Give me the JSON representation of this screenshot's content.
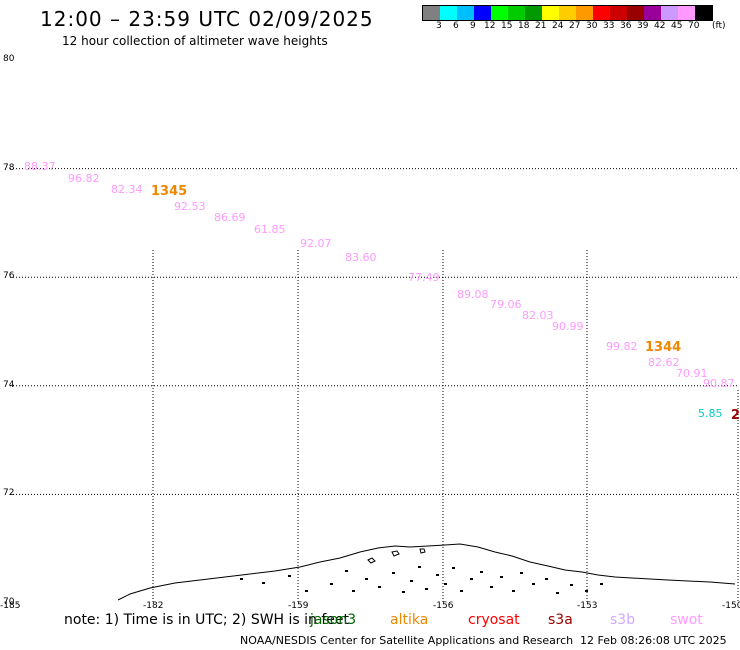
{
  "header": {
    "title": "12:00 – 23:59 UTC 02/09/2025",
    "subtitle": "12 hour collection of altimeter wave heights"
  },
  "colorbar": {
    "colors": [
      "#808080",
      "#00ffff",
      "#00bfff",
      "#0000ff",
      "#00ff00",
      "#00cc00",
      "#009900",
      "#ffff00",
      "#ffcc00",
      "#ff9900",
      "#ff0000",
      "#cc0000",
      "#990000",
      "#990099",
      "#cc99ff",
      "#ff99ff",
      "#000000"
    ],
    "labels": [
      "3",
      "6",
      "9",
      "12",
      "15",
      "18",
      "21",
      "24",
      "27",
      "30",
      "33",
      "36",
      "39",
      "42",
      "45",
      "70"
    ],
    "unit": "(ft)"
  },
  "axes": {
    "y_ticks": [
      {
        "label": "80",
        "value": 80
      },
      {
        "label": "78",
        "value": 78
      },
      {
        "label": "76",
        "value": 76
      },
      {
        "label": "74",
        "value": 74
      },
      {
        "label": "72",
        "value": 72
      },
      {
        "label": "70",
        "value": 70
      }
    ],
    "x_ticks": [
      {
        "label": "-185",
        "value": -185
      },
      {
        "label": "-182",
        "value": -182
      },
      {
        "label": "-159",
        "value": -159
      },
      {
        "label": "-156",
        "value": -156
      },
      {
        "label": "-153",
        "value": -153
      },
      {
        "label": "-150",
        "value": -150
      }
    ]
  },
  "observations": [
    {
      "text": "88.37",
      "color": "#ff99ff",
      "lon": -184.5,
      "lat": 78.7
    },
    {
      "text": "96.82",
      "color": "#ff99ff",
      "lon": -183.5,
      "lat": 78.45
    },
    {
      "text": "82.34",
      "color": "#ff99ff",
      "lon": -182.8,
      "lat": 78.2
    },
    {
      "text": "92.53",
      "color": "#ff99ff",
      "lon": -181.8,
      "lat": 77.85
    },
    {
      "text": "86.69",
      "color": "#ff99ff",
      "lon": -181.0,
      "lat": 77.6
    },
    {
      "text": "61.85",
      "color": "#ff99ff",
      "lon": -180.2,
      "lat": 77.35
    },
    {
      "text": "92.07",
      "color": "#ff99ff",
      "lon": -179.2,
      "lat": 77.1
    },
    {
      "text": "83.60",
      "color": "#ff99ff",
      "lon": -157.7,
      "lat": 76.95
    },
    {
      "text": "77.49",
      "color": "#ff99ff",
      "lon": -156.4,
      "lat": 76.5
    },
    {
      "text": "89.08",
      "color": "#ff99ff",
      "lon": -155.5,
      "lat": 76.2
    },
    {
      "text": "79.06",
      "color": "#ff99ff",
      "lon": -154.8,
      "lat": 75.95
    },
    {
      "text": "82.03",
      "color": "#ff99ff",
      "lon": -154.1,
      "lat": 75.7
    },
    {
      "text": "90.99",
      "color": "#ff99ff",
      "lon": -153.4,
      "lat": 75.45
    },
    {
      "text": "99.82",
      "color": "#ff99ff",
      "lon": -152.6,
      "lat": 75.2
    },
    {
      "text": "82.62",
      "color": "#ff99ff",
      "lon": -151.8,
      "lat": 74.95
    },
    {
      "text": "70.91",
      "color": "#ff99ff",
      "lon": -151.2,
      "lat": 74.75
    },
    {
      "text": "90.87",
      "color": "#ff99ff",
      "lon": -150.7,
      "lat": 74.5
    },
    {
      "text": "5.85",
      "color": "#00cccc",
      "lon": -151.3,
      "lat": 74.05
    }
  ],
  "pass_labels": [
    {
      "text": "1345",
      "color": "#ee8800",
      "lon": -182.0,
      "lat": 78.0
    },
    {
      "text": "1344",
      "color": "#ee8800",
      "lon": -152.0,
      "lat": 75.3
    },
    {
      "text": "2",
      "color": "#990000",
      "lon": -150.0,
      "lat": 74.05
    }
  ],
  "note": "note:  1) Time is in UTC;  2) SWH is in feet",
  "legend": [
    {
      "name": "jason3",
      "color": "#006600"
    },
    {
      "name": "altika",
      "color": "#ee8800"
    },
    {
      "name": "cryosat",
      "color": "#ff0000"
    },
    {
      "name": "s3a",
      "color": "#990000"
    },
    {
      "name": "s3b",
      "color": "#ccaaff"
    },
    {
      "name": "swot",
      "color": "#ff99ff"
    }
  ],
  "credit": "NOAA/NESDIS Center for Satellite Applications and Research",
  "generated": "12 Feb 08:26:08 UTC 2025"
}
